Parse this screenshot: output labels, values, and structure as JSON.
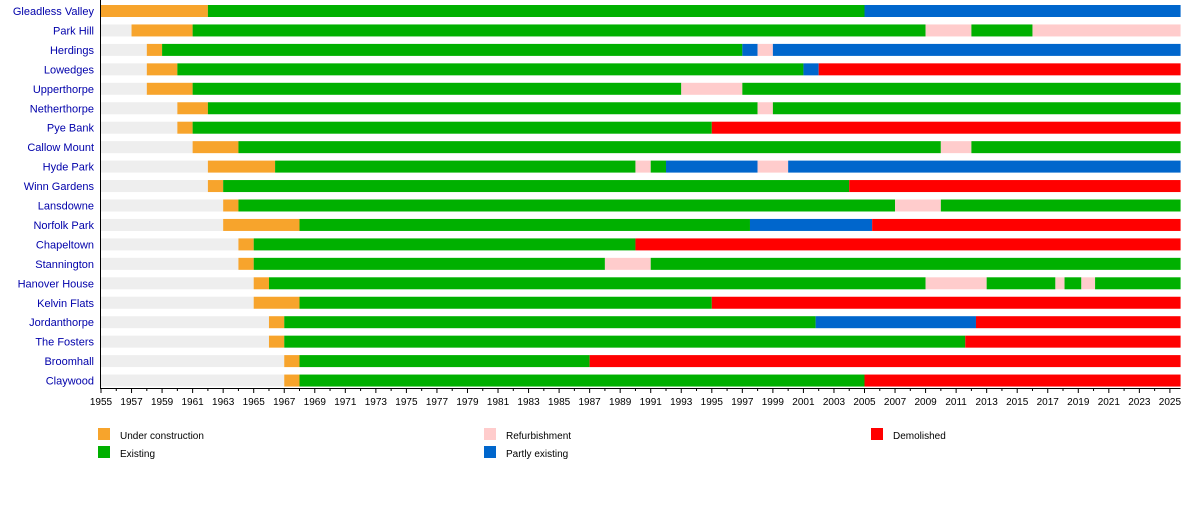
{
  "chart_data": {
    "type": "timeline",
    "xlim": [
      1955,
      2025.7
    ],
    "x_ticks": [
      1955,
      1957,
      1959,
      1961,
      1963,
      1965,
      1967,
      1969,
      1971,
      1973,
      1975,
      1977,
      1979,
      1981,
      1983,
      1985,
      1987,
      1989,
      1991,
      1993,
      1995,
      1997,
      1999,
      2001,
      2003,
      2005,
      2007,
      2009,
      2011,
      2013,
      2015,
      2017,
      2019,
      2021,
      2023,
      2025
    ],
    "grid": false,
    "legend_placement": "bottom",
    "colors": {
      "none": "#eeeeee",
      "construction": "#f7a42c",
      "existing": "#00b000",
      "refurbishment": "#ffcccc",
      "partly": "#0066cc",
      "demolished": "#ff0000"
    },
    "legend": [
      {
        "key": "construction",
        "label": "Under construction"
      },
      {
        "key": "existing",
        "label": "Existing"
      },
      {
        "key": "refurbishment",
        "label": "Refurbishment"
      },
      {
        "key": "partly",
        "label": "Partly existing"
      },
      {
        "key": "demolished",
        "label": "Demolished"
      }
    ],
    "rows": [
      {
        "name": "Gleadless Valley",
        "segments": [
          [
            "construction",
            1955,
            1962
          ],
          [
            "existing",
            1962,
            2005
          ],
          [
            "partly",
            2005,
            2025.7
          ]
        ]
      },
      {
        "name": "Park Hill",
        "segments": [
          [
            "none",
            1955,
            1957
          ],
          [
            "construction",
            1957,
            1961
          ],
          [
            "existing",
            1961,
            2009
          ],
          [
            "refurbishment",
            2009,
            2012
          ],
          [
            "existing",
            2012,
            2016
          ],
          [
            "refurbishment",
            2016,
            2025.7
          ]
        ]
      },
      {
        "name": "Herdings",
        "segments": [
          [
            "none",
            1955,
            1958
          ],
          [
            "construction",
            1958,
            1959
          ],
          [
            "existing",
            1959,
            1997
          ],
          [
            "partly",
            1997,
            1998
          ],
          [
            "refurbishment",
            1998,
            1999
          ],
          [
            "partly",
            1999,
            2025.7
          ]
        ]
      },
      {
        "name": "Lowedges",
        "segments": [
          [
            "none",
            1955,
            1958
          ],
          [
            "construction",
            1958,
            1960
          ],
          [
            "existing",
            1960,
            2001
          ],
          [
            "partly",
            2001,
            2002
          ],
          [
            "demolished",
            2002,
            2025.7
          ]
        ]
      },
      {
        "name": "Upperthorpe",
        "segments": [
          [
            "none",
            1955,
            1958
          ],
          [
            "construction",
            1958,
            1961
          ],
          [
            "existing",
            1961,
            1993
          ],
          [
            "refurbishment",
            1993,
            1997
          ],
          [
            "existing",
            1997,
            2025.7
          ]
        ]
      },
      {
        "name": "Netherthorpe",
        "segments": [
          [
            "none",
            1955,
            1960
          ],
          [
            "construction",
            1960,
            1962
          ],
          [
            "existing",
            1962,
            1998
          ],
          [
            "refurbishment",
            1998,
            1999
          ],
          [
            "existing",
            1999,
            2025.7
          ]
        ]
      },
      {
        "name": "Pye Bank",
        "segments": [
          [
            "none",
            1955,
            1960
          ],
          [
            "construction",
            1960,
            1961
          ],
          [
            "existing",
            1961,
            1995
          ],
          [
            "demolished",
            1995,
            2025.7
          ]
        ]
      },
      {
        "name": "Callow Mount",
        "segments": [
          [
            "none",
            1955,
            1961
          ],
          [
            "construction",
            1961,
            1964
          ],
          [
            "existing",
            1964,
            2010
          ],
          [
            "refurbishment",
            2010,
            2012
          ],
          [
            "existing",
            2012,
            2025.7
          ]
        ]
      },
      {
        "name": "Hyde Park",
        "segments": [
          [
            "none",
            1955,
            1962
          ],
          [
            "construction",
            1962,
            1966.4
          ],
          [
            "existing",
            1966.4,
            1990
          ],
          [
            "refurbishment",
            1990,
            1991
          ],
          [
            "existing",
            1991,
            1992
          ],
          [
            "partly",
            1992,
            1998
          ],
          [
            "refurbishment",
            1998,
            2000
          ],
          [
            "partly",
            2000,
            2025.7
          ]
        ]
      },
      {
        "name": "Winn Gardens",
        "segments": [
          [
            "none",
            1955,
            1962
          ],
          [
            "construction",
            1962,
            1963
          ],
          [
            "existing",
            1963,
            2004
          ],
          [
            "demolished",
            2004,
            2025.7
          ]
        ]
      },
      {
        "name": "Lansdowne",
        "segments": [
          [
            "none",
            1955,
            1963
          ],
          [
            "construction",
            1963,
            1964
          ],
          [
            "existing",
            1964,
            2007
          ],
          [
            "refurbishment",
            2007,
            2010
          ],
          [
            "existing",
            2010,
            2025.7
          ]
        ]
      },
      {
        "name": "Norfolk Park",
        "segments": [
          [
            "none",
            1955,
            1963
          ],
          [
            "construction",
            1963,
            1968
          ],
          [
            "existing",
            1968,
            1997.5
          ],
          [
            "partly",
            1997.5,
            2005.5
          ],
          [
            "demolished",
            2005.5,
            2025.7
          ]
        ]
      },
      {
        "name": "Chapeltown",
        "segments": [
          [
            "none",
            1955,
            1964
          ],
          [
            "construction",
            1964,
            1965
          ],
          [
            "existing",
            1965,
            1990
          ],
          [
            "demolished",
            1990,
            2025.7
          ]
        ]
      },
      {
        "name": "Stannington",
        "segments": [
          [
            "none",
            1955,
            1964
          ],
          [
            "construction",
            1964,
            1965
          ],
          [
            "existing",
            1965,
            1988
          ],
          [
            "refurbishment",
            1988,
            1991
          ],
          [
            "existing",
            1991,
            2025.7
          ]
        ]
      },
      {
        "name": "Hanover House",
        "segments": [
          [
            "none",
            1955,
            1965
          ],
          [
            "construction",
            1965,
            1966
          ],
          [
            "existing",
            1966,
            2009
          ],
          [
            "refurbishment",
            2009,
            2013
          ],
          [
            "existing",
            2013,
            2017.5
          ],
          [
            "refurbishment",
            2017.5,
            2018.1
          ],
          [
            "existing",
            2018.1,
            2019.2
          ],
          [
            "refurbishment",
            2019.2,
            2020.1
          ],
          [
            "existing",
            2020.1,
            2025.7
          ]
        ]
      },
      {
        "name": "Kelvin Flats",
        "segments": [
          [
            "none",
            1955,
            1965
          ],
          [
            "construction",
            1965,
            1968
          ],
          [
            "existing",
            1968,
            1995
          ],
          [
            "demolished",
            1995,
            2025.7
          ]
        ]
      },
      {
        "name": "Jordanthorpe",
        "segments": [
          [
            "none",
            1955,
            1966
          ],
          [
            "construction",
            1966,
            1967
          ],
          [
            "existing",
            1967,
            2001.8
          ],
          [
            "partly",
            2001.8,
            2012.3
          ],
          [
            "demolished",
            2012.3,
            2025.7
          ]
        ]
      },
      {
        "name": "The Fosters",
        "segments": [
          [
            "none",
            1955,
            1966
          ],
          [
            "construction",
            1966,
            1967
          ],
          [
            "existing",
            1967,
            2011.6
          ],
          [
            "demolished",
            2011.6,
            2025.7
          ]
        ]
      },
      {
        "name": "Broomhall",
        "segments": [
          [
            "none",
            1955,
            1967
          ],
          [
            "construction",
            1967,
            1968
          ],
          [
            "existing",
            1968,
            1987
          ],
          [
            "demolished",
            1987,
            2025.7
          ]
        ]
      },
      {
        "name": "Claywood",
        "segments": [
          [
            "none",
            1955,
            1967
          ],
          [
            "construction",
            1967,
            1968
          ],
          [
            "existing",
            1968,
            2005
          ],
          [
            "demolished",
            2005,
            2025.7
          ]
        ]
      }
    ]
  }
}
